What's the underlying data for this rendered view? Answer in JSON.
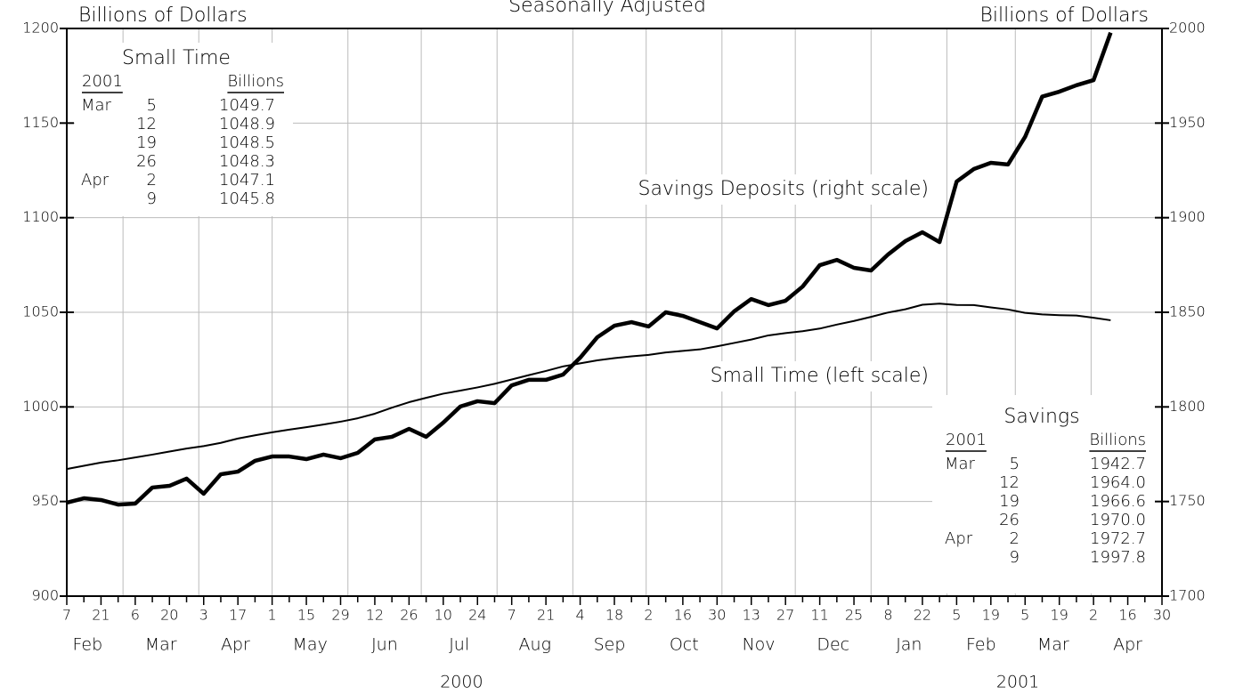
{
  "chart_data": {
    "type": "line",
    "title": "Seasonally Adjusted",
    "y_axis_label": "Billions of Dollars",
    "y2_axis_label": "Billions of Dollars",
    "categories": [
      "7",
      null,
      "21",
      null,
      "6",
      null,
      "20",
      null,
      "3",
      null,
      "17",
      null,
      "1",
      null,
      "15",
      null,
      "29",
      null,
      "12",
      null,
      "26",
      null,
      "10",
      null,
      "24",
      null,
      "7",
      null,
      "21",
      null,
      "4",
      null,
      "18",
      null,
      "2",
      null,
      "16",
      null,
      "30",
      null,
      "13",
      null,
      "27",
      null,
      "11",
      null,
      "25",
      null,
      "8",
      null,
      "22",
      null,
      "5",
      null,
      "19",
      null,
      "5",
      null,
      "19",
      null,
      "2",
      null,
      "16",
      null,
      "30"
    ],
    "months": [
      "Feb",
      "Mar",
      "Apr",
      "May",
      "Jun",
      "Jul",
      "Aug",
      "Sep",
      "Oct",
      "Nov",
      "Dec",
      "Jan",
      "Feb",
      "Mar",
      "Apr"
    ],
    "years": [
      "2000",
      "2001"
    ],
    "series": [
      {
        "name": "Small Time (left scale)",
        "color": "#000000",
        "axis": "y",
        "values": [
          967.2,
          968.9,
          970.6,
          971.8,
          973.3,
          974.8,
          976.4,
          978.0,
          979.3,
          981.0,
          983.3,
          985.0,
          986.6,
          988.0,
          989.3,
          990.7,
          992.2,
          994.0,
          996.4,
          999.6,
          1002.5,
          1004.8,
          1007.0,
          1008.6,
          1010.3,
          1012.2,
          1014.5,
          1016.8,
          1019.0,
          1021.4,
          1023.0,
          1024.6,
          1025.8,
          1026.7,
          1027.5,
          1028.8,
          1029.6,
          1030.4,
          1032.0,
          1033.8,
          1035.6,
          1037.8,
          1039.0,
          1040.0,
          1041.4,
          1043.5,
          1045.4,
          1047.6,
          1049.9,
          1051.6,
          1054.0,
          1054.6,
          1053.9,
          1053.8,
          1052.6,
          1051.5,
          1049.7,
          1048.9,
          1048.5,
          1048.3,
          1047.1,
          1045.8,
          null,
          null,
          null
        ]
      },
      {
        "name": "Savings Deposits (right scale)",
        "color": "#000000",
        "axis": "y2",
        "values": [
          1749.4,
          1751.7,
          1750.8,
          1748.4,
          1748.9,
          1757.4,
          1758.3,
          1762.1,
          1754.1,
          1764.4,
          1765.8,
          1771.5,
          1773.8,
          1773.8,
          1772.4,
          1774.8,
          1772.9,
          1775.7,
          1782.8,
          1784.2,
          1788.4,
          1784.2,
          1791.7,
          1800.2,
          1803.0,
          1802.0,
          1811.4,
          1814.3,
          1814.3,
          1817.1,
          1826.0,
          1836.8,
          1842.9,
          1844.8,
          1842.5,
          1850.0,
          1848.1,
          1844.8,
          1841.5,
          1850.5,
          1857.0,
          1853.8,
          1856.1,
          1863.6,
          1874.9,
          1877.7,
          1873.5,
          1872.1,
          1880.6,
          1887.6,
          1892.3,
          1887.1,
          1919.1,
          1925.7,
          1929.0,
          1928.1,
          1942.7,
          1964.0,
          1966.6,
          1970.0,
          1972.7,
          1997.8,
          null,
          null,
          null
        ]
      }
    ],
    "ylim": [
      900,
      1200
    ],
    "yticks": [
      900,
      950,
      1000,
      1050,
      1100,
      1150,
      1200
    ],
    "y2lim": [
      1700,
      2000
    ],
    "y2ticks": [
      1700,
      1750,
      1800,
      1850,
      1900,
      1950,
      2000
    ],
    "grid": true
  },
  "tables": [
    {
      "title": "Small Time",
      "headers": [
        "2001",
        "Billions"
      ],
      "rows": [
        [
          "Mar",
          "5",
          "1049.7"
        ],
        [
          null,
          "12",
          "1048.9"
        ],
        [
          null,
          "19",
          "1048.5"
        ],
        [
          null,
          "26",
          "1048.3"
        ],
        [
          "Apr",
          "2",
          "1047.1"
        ],
        [
          null,
          "9",
          "1045.8"
        ]
      ]
    },
    {
      "title": "Savings",
      "headers": [
        "2001",
        "Billions"
      ],
      "rows": [
        [
          "Mar",
          "5",
          "1942.7"
        ],
        [
          null,
          "12",
          "1964.0"
        ],
        [
          null,
          "19",
          "1966.6"
        ],
        [
          null,
          "26",
          "1970.0"
        ],
        [
          "Apr",
          "2",
          "1972.7"
        ],
        [
          null,
          "9",
          "1997.8"
        ]
      ]
    }
  ]
}
